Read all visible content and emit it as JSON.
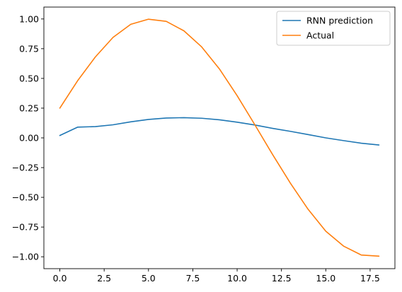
{
  "chart_data": {
    "type": "line",
    "x": [
      0,
      1,
      2,
      3,
      4,
      5,
      6,
      7,
      8,
      9,
      10,
      11,
      12,
      13,
      14,
      15,
      16,
      17,
      18
    ],
    "series": [
      {
        "name": "RNN prediction",
        "color": "#1f77b4",
        "values": [
          0.02,
          0.09,
          0.095,
          0.11,
          0.135,
          0.155,
          0.167,
          0.17,
          0.165,
          0.152,
          0.132,
          0.108,
          0.08,
          0.055,
          0.028,
          0.0,
          -0.023,
          -0.045,
          -0.06
        ]
      },
      {
        "name": "Actual",
        "color": "#ff7f0e",
        "values": [
          0.25,
          0.48,
          0.68,
          0.845,
          0.955,
          0.998,
          0.98,
          0.9,
          0.765,
          0.58,
          0.355,
          0.11,
          -0.14,
          -0.38,
          -0.6,
          -0.785,
          -0.91,
          -0.985,
          -0.995
        ]
      }
    ],
    "xlim": [
      -0.9,
      18.9
    ],
    "ylim": [
      -1.1,
      1.1
    ],
    "xticks": [
      0,
      2.5,
      5,
      7.5,
      10,
      12.5,
      15,
      17.5
    ],
    "xtick_labels": [
      "0.0",
      "2.5",
      "5.0",
      "7.5",
      "10.0",
      "12.5",
      "15.0",
      "17.5"
    ],
    "yticks": [
      1.0,
      0.75,
      0.5,
      0.25,
      0.0,
      -0.25,
      -0.5,
      -0.75,
      -1.0
    ],
    "ytick_labels": [
      "1.00",
      "0.75",
      "0.50",
      "0.25",
      "0.00",
      "−0.25",
      "−0.50",
      "−0.75",
      "−1.00"
    ],
    "grid": false,
    "legend": "top-right",
    "title": "",
    "xlabel": "",
    "ylabel": ""
  }
}
